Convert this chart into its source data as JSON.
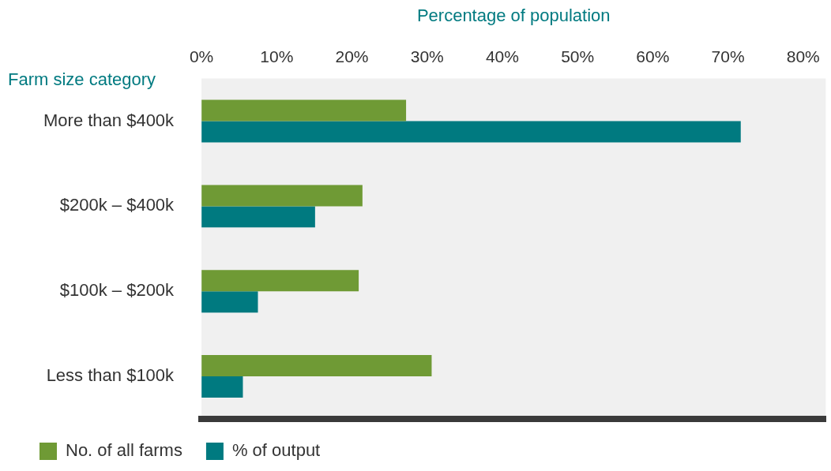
{
  "chart_data": {
    "type": "bar",
    "orientation": "horizontal",
    "xlabel": "Percentage of population",
    "ylabel": "Farm size category",
    "categories": [
      "More than $400k",
      "$200k – $400k",
      "$100k – $200k",
      "Less than $100k"
    ],
    "series": [
      {
        "name": "No. of all farms",
        "color": "#6f9a35",
        "values": [
          27.2,
          21.4,
          20.9,
          30.6
        ]
      },
      {
        "name": "% of output",
        "color": "#007a80",
        "values": [
          71.7,
          15.1,
          7.5,
          5.5
        ]
      }
    ],
    "xlim": [
      0,
      83
    ],
    "xticks": [
      {
        "value": 0,
        "label": "0%"
      },
      {
        "value": 10,
        "label": "10%"
      },
      {
        "value": 20,
        "label": "20%"
      },
      {
        "value": 30,
        "label": "30%"
      },
      {
        "value": 40,
        "label": "40%"
      },
      {
        "value": 50,
        "label": "50%"
      },
      {
        "value": 60,
        "label": "60%"
      },
      {
        "value": 70,
        "label": "70%"
      },
      {
        "value": 80,
        "label": "80%"
      }
    ],
    "grid": false,
    "legend": "bottom"
  }
}
